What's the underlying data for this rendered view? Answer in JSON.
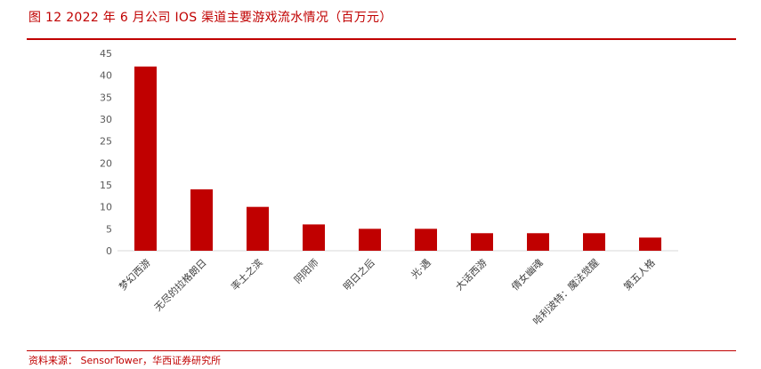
{
  "header": {
    "title": "图 12 2022 年 6 月公司 IOS 渠道主要游戏流水情况（百万元）"
  },
  "footer": {
    "source": "资料来源： SensorTower，华西证券研究所"
  },
  "colors": {
    "accent": "#c00000",
    "bar": "#c00000",
    "axis": "#d9d9d9"
  },
  "chart_data": {
    "type": "bar",
    "categories": [
      "梦幻西游",
      "无尽的拉格朗日",
      "率土之滨",
      "阴阳师",
      "明日之后",
      "光·遇",
      "大话西游",
      "倩女幽魂",
      "哈利波特：魔法觉醒",
      "第五人格"
    ],
    "values": [
      42,
      14,
      10,
      6,
      5,
      5,
      4,
      4,
      4,
      3
    ],
    "ylim": [
      0,
      45
    ],
    "yticks": [
      0,
      5,
      10,
      15,
      20,
      25,
      30,
      35,
      40,
      45
    ],
    "grid": false,
    "legend": "none"
  }
}
